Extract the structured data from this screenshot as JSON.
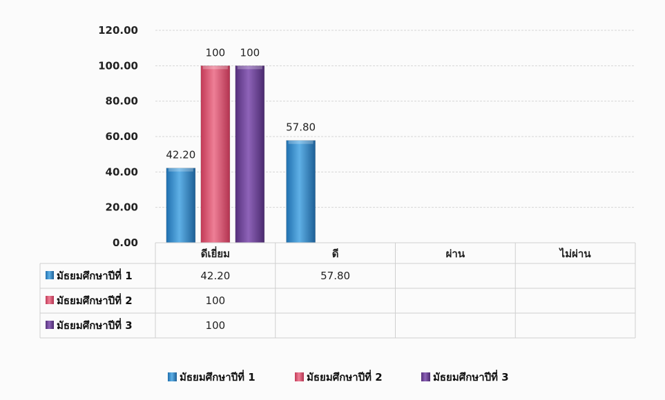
{
  "chart_data": {
    "type": "bar",
    "categories": [
      "ดีเยี่ยม",
      "ดี",
      "ผ่าน",
      "ไม่ผ่าน"
    ],
    "series": [
      {
        "name": "มัธยมศึกษาปีที่ 1",
        "values": [
          42.2,
          57.8,
          null,
          null
        ],
        "labels": [
          "42.20",
          "57.80",
          "",
          ""
        ],
        "color": "#2f86c6"
      },
      {
        "name": "มัธยมศึกษาปีที่ 2",
        "values": [
          100,
          null,
          null,
          null
        ],
        "labels": [
          "100",
          "",
          "",
          ""
        ],
        "color": "#d9506c"
      },
      {
        "name": "มัธยมศึกษาปีที่ 3",
        "values": [
          100,
          null,
          null,
          null
        ],
        "labels": [
          "100",
          "",
          "",
          ""
        ],
        "color": "#6a3d94"
      }
    ],
    "ylim": [
      0,
      120
    ],
    "yticks": [
      "0.00",
      "20.00",
      "40.00",
      "60.00",
      "80.00",
      "100.00",
      "120.00"
    ],
    "grid": true,
    "legend_position": "bottom",
    "data_table": true
  }
}
